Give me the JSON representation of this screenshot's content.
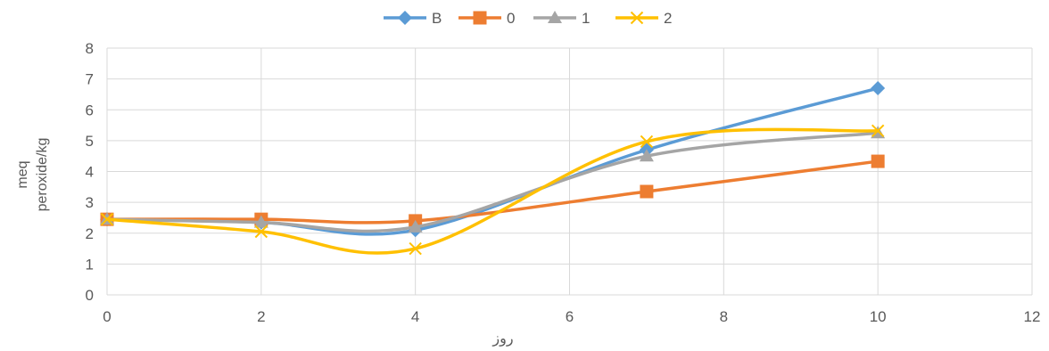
{
  "chart_data": {
    "type": "line",
    "xlabel": "روز",
    "ylabel_lines": [
      "meq",
      "peroxide/kg"
    ],
    "xlim": [
      0,
      12
    ],
    "ylim": [
      0,
      8
    ],
    "xticks": [
      "0",
      "2",
      "4",
      "6",
      "8",
      "10",
      "12"
    ],
    "yticks": [
      "0",
      "1",
      "2",
      "3",
      "4",
      "5",
      "6",
      "7",
      "8"
    ],
    "grid": true,
    "legend_position": "top",
    "smooth": true,
    "series": [
      {
        "name": "B",
        "color": "#5B9BD5",
        "marker": "diamond",
        "x": [
          0,
          2,
          4,
          7,
          10
        ],
        "y": [
          2.45,
          2.35,
          2.1,
          4.7,
          6.7
        ]
      },
      {
        "name": "0",
        "color": "#ED7D31",
        "marker": "square",
        "x": [
          0,
          2,
          4,
          7,
          10
        ],
        "y": [
          2.45,
          2.45,
          2.4,
          3.35,
          4.33
        ]
      },
      {
        "name": "1",
        "color": "#A5A5A5",
        "marker": "triangle",
        "x": [
          0,
          2,
          4,
          7,
          10
        ],
        "y": [
          2.45,
          2.35,
          2.2,
          4.5,
          5.25
        ]
      },
      {
        "name": "2",
        "color": "#FFC000",
        "marker": "x",
        "x": [
          0,
          2,
          4,
          7,
          10
        ],
        "y": [
          2.45,
          2.05,
          1.5,
          4.97,
          5.32
        ]
      }
    ]
  }
}
